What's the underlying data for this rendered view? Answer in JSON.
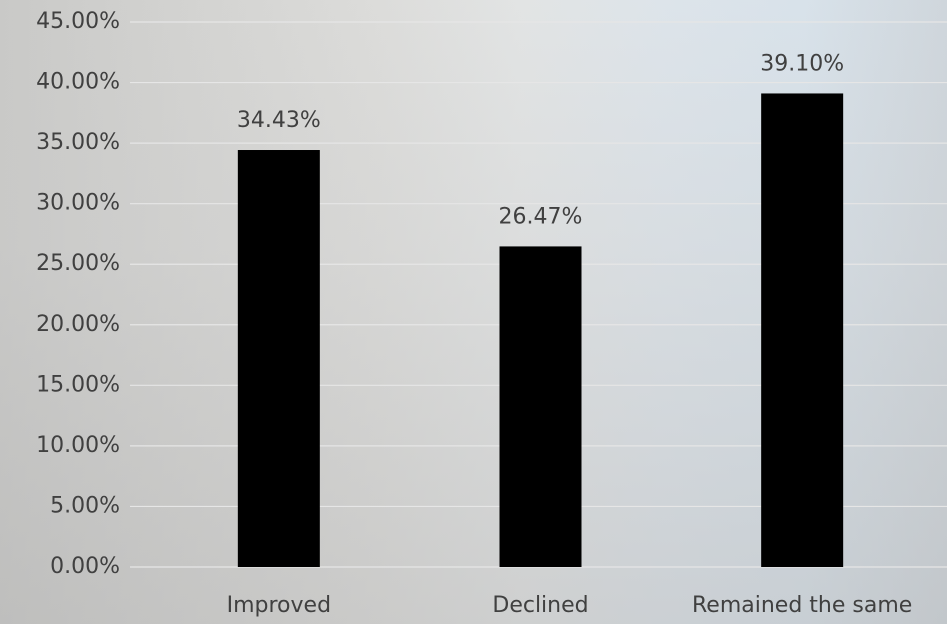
{
  "chart_data": {
    "type": "bar",
    "categories": [
      "Improved",
      "Declined",
      "Remained the same"
    ],
    "values": [
      34.43,
      26.47,
      39.1
    ],
    "value_labels": [
      "34.43%",
      "26.47%",
      "39.10%"
    ],
    "color": "#000000",
    "ylim": [
      0,
      45
    ],
    "yticks": [
      {
        "value": 0,
        "label": "0.00%"
      },
      {
        "value": 5,
        "label": "5.00%"
      },
      {
        "value": 10,
        "label": "10.00%"
      },
      {
        "value": 15,
        "label": "15.00%"
      },
      {
        "value": 20,
        "label": "20.00%"
      },
      {
        "value": 25,
        "label": "25.00%"
      },
      {
        "value": 30,
        "label": "30.00%"
      },
      {
        "value": 35,
        "label": "35.00%"
      },
      {
        "value": 40,
        "label": "40.00%"
      },
      {
        "value": 45,
        "label": "45.00%"
      }
    ],
    "grid": true
  }
}
